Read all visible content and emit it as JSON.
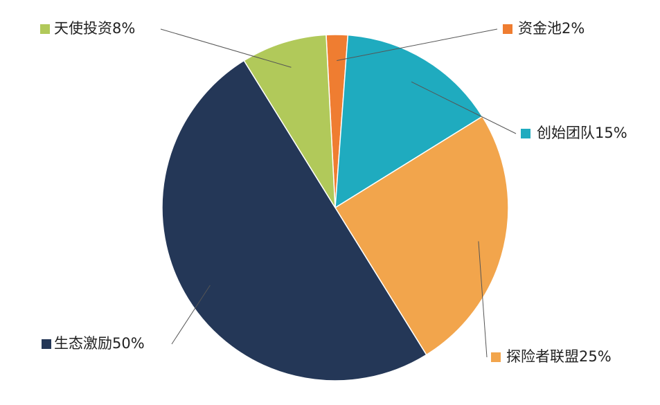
{
  "chart_data": {
    "type": "pie",
    "categories": [
      "资金池",
      "创始团队",
      "探险者联盟",
      "生态激励",
      "天使投资"
    ],
    "values": [
      2,
      15,
      25,
      50,
      8
    ],
    "value_labels": [
      "2%",
      "15%",
      "25%",
      "50%",
      "8%"
    ],
    "colors": [
      "#ef7d31",
      "#1fabbf",
      "#f2a54c",
      "#243757",
      "#b1c95a"
    ]
  }
}
